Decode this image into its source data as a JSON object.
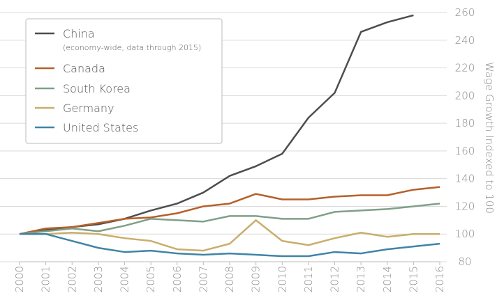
{
  "chart_data": {
    "type": "line",
    "y_label": "Wage Growth Indexed to 100",
    "x": [
      "2000",
      "2001",
      "2002",
      "2003",
      "2004",
      "2005",
      "2006",
      "2007",
      "2008",
      "2009",
      "2010",
      "2011",
      "2012",
      "2013",
      "2014",
      "2015",
      "2016"
    ],
    "series": [
      {
        "name": "China",
        "note": "(economy-wide, data through 2015)",
        "color": "#4d4d4d",
        "values": [
          100,
          103,
          105,
          107,
          111,
          117,
          122,
          130,
          142,
          149,
          158,
          184,
          202,
          246,
          253,
          258,
          null
        ]
      },
      {
        "name": "Canada",
        "color": "#b5602a",
        "values": [
          100,
          104,
          105,
          108,
          111,
          112,
          115,
          120,
          122,
          129,
          125,
          125,
          127,
          128,
          128,
          132,
          134
        ]
      },
      {
        "name": "South Korea",
        "color": "#7f9f88",
        "values": [
          100,
          102,
          104,
          102,
          106,
          111,
          110,
          109,
          113,
          113,
          111,
          111,
          116,
          117,
          118,
          120,
          122
        ]
      },
      {
        "name": "Germany",
        "color": "#c9ae6c",
        "values": [
          100,
          100,
          101,
          100,
          97,
          95,
          89,
          88,
          93,
          110,
          95,
          92,
          97,
          101,
          98,
          100,
          100
        ]
      },
      {
        "name": "United States",
        "color": "#3f84a6",
        "values": [
          100,
          100,
          95,
          90,
          87,
          88,
          86,
          85,
          86,
          85,
          84,
          84,
          87,
          86,
          89,
          91,
          93
        ]
      }
    ],
    "ylim": [
      80,
      260
    ],
    "yticks": [
      80,
      100,
      120,
      140,
      160,
      180,
      200,
      220,
      240,
      260
    ],
    "grid": true,
    "legend": "top-left"
  }
}
